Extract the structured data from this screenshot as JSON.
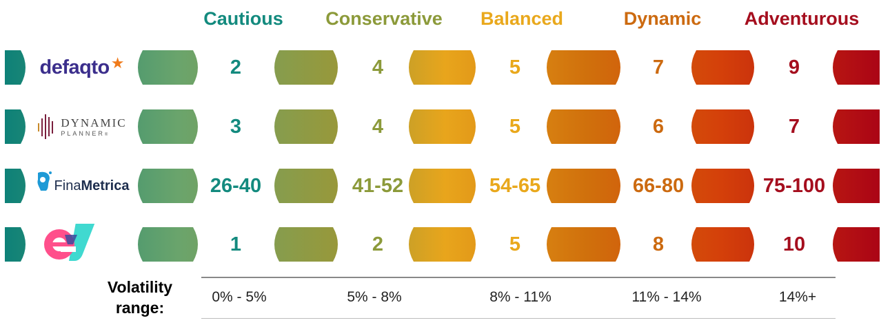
{
  "categories": [
    {
      "label": "Cautious",
      "color": "#138a7e"
    },
    {
      "label": "Conservative",
      "color": "#8c9a3a"
    },
    {
      "label": "Balanced",
      "color": "#e9a81c"
    },
    {
      "label": "Dynamic",
      "color": "#cc6a10"
    },
    {
      "label": "Adventurous",
      "color": "#a50e1e"
    }
  ],
  "rows": [
    {
      "provider": "defaqto",
      "values": [
        "2",
        "4",
        "5",
        "7",
        "9"
      ]
    },
    {
      "provider": "Dynamic Planner",
      "values": [
        "3",
        "4",
        "5",
        "6",
        "7"
      ]
    },
    {
      "provider": "FinaMetrica",
      "values": [
        "26-40",
        "41-52",
        "54-65",
        "66-80",
        "75-100"
      ]
    },
    {
      "provider": "EV",
      "values": [
        "1",
        "2",
        "5",
        "8",
        "10"
      ]
    }
  ],
  "logos": {
    "defaqto": {
      "text": "defaqto",
      "color": "#3b2e8c",
      "star_color": "#f07a1a"
    },
    "dynamic_planner": {
      "line1": "DYNAMIC",
      "line2": "PLANNER",
      "mark": "®",
      "color": "#444444",
      "accent": "#7a1f3d"
    },
    "finametrica": {
      "text_light": "Fina",
      "text_bold": "Metrica",
      "color": "#1d2d4d",
      "accent": "#1e9ad6"
    },
    "ev": {
      "e_color": "#ff4f8b",
      "v_color": "#40d9d0"
    }
  },
  "volatility": {
    "title": "Volatility range:",
    "ranges": [
      "0% - 5%",
      "5% - 8%",
      "8% - 11%",
      "11% - 14%",
      "14%+"
    ]
  }
}
